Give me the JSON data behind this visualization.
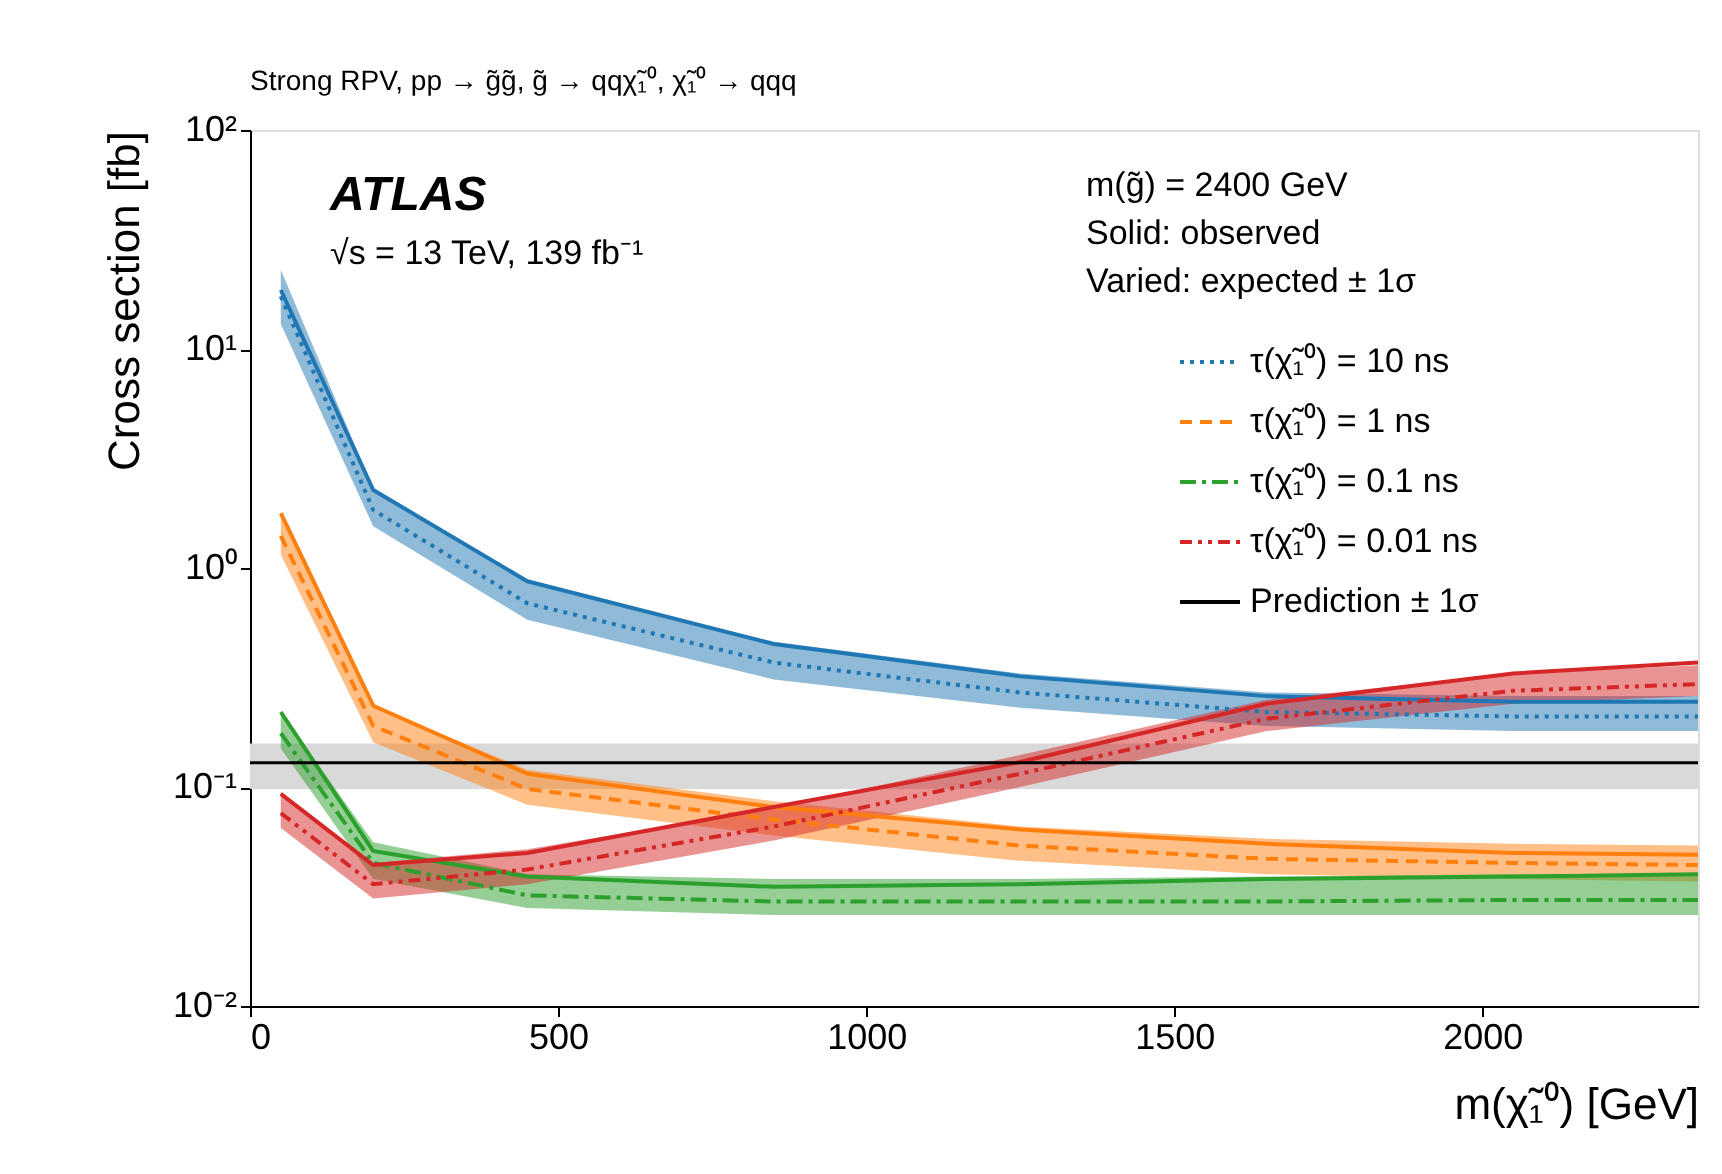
{
  "chart_data": {
    "type": "line",
    "title": "Strong RPV, pp → g̃g̃, g̃ → qqχ̃₁⁰, χ̃₁⁰ → qqq",
    "xlabel": "m(χ̃₁⁰) [GeV]",
    "ylabel": "Cross section [fb]",
    "annotations": [
      "ATLAS",
      "√s = 13 TeV, 139 fb⁻¹",
      "m(g̃) = 2400 GeV",
      "Solid: observed",
      "Varied: expected ± 1σ"
    ],
    "x": [
      50,
      200,
      450,
      850,
      1250,
      1650,
      2050,
      2350
    ],
    "series": [
      {
        "name": "τ(χ̃₁⁰) = 10 ns",
        "color": "#1f77b4",
        "line_style": "dotted",
        "values": [
          17.4,
          1.84,
          0.69,
          0.37,
          0.27,
          0.22,
          0.21,
          0.21
        ],
        "lower": [
          13,
          1.55,
          0.58,
          0.31,
          0.23,
          0.19,
          0.18,
          0.18
        ],
        "upper": [
          23,
          2.3,
          0.87,
          0.46,
          0.33,
          0.27,
          0.26,
          0.26
        ]
      },
      {
        "color": "#1f77b4",
        "line_style": "solid",
        "values": [
          18.6,
          2.27,
          0.87,
          0.45,
          0.32,
          0.26,
          0.245,
          0.245
        ]
      },
      {
        "name": "τ(χ̃₁⁰) = 1 ns",
        "color": "#ff7f0e",
        "line_style": "dashed",
        "values": [
          1.4,
          0.19,
          0.098,
          0.071,
          0.054,
          0.047,
          0.045,
          0.044
        ],
        "lower": [
          1.15,
          0.16,
          0.083,
          0.06,
          0.046,
          0.04,
          0.038,
          0.037
        ],
        "upper": [
          1.75,
          0.235,
          0.12,
          0.086,
          0.066,
          0.058,
          0.055,
          0.054
        ]
      },
      {
        "color": "#ff7f0e",
        "line_style": "solid",
        "values": [
          1.78,
          0.235,
          0.115,
          0.081,
          0.064,
          0.055,
          0.05,
          0.049
        ]
      },
      {
        "name": "τ(χ̃₁⁰) = 0.1 ns",
        "color": "#2ca02c",
        "line_style": "dashdot",
        "values": [
          0.176,
          0.045,
          0.032,
          0.03,
          0.03,
          0.03,
          0.0305,
          0.0305
        ],
        "lower": [
          0.15,
          0.038,
          0.028,
          0.026,
          0.026,
          0.026,
          0.026,
          0.026
        ],
        "upper": [
          0.22,
          0.056,
          0.04,
          0.038,
          0.038,
          0.039,
          0.04,
          0.04
        ]
      },
      {
        "color": "#2ca02c",
        "line_style": "solid",
        "values": [
          0.22,
          0.051,
          0.039,
          0.035,
          0.036,
          0.038,
          0.039,
          0.04
        ]
      },
      {
        "name": "τ(χ̃₁⁰) = 0.01 ns",
        "color": "#d62728",
        "line_style": "dashdotdot",
        "values": [
          0.076,
          0.036,
          0.042,
          0.066,
          0.115,
          0.205,
          0.275,
          0.295
        ],
        "lower": [
          0.065,
          0.031,
          0.036,
          0.057,
          0.1,
          0.18,
          0.24,
          0.26
        ],
        "upper": [
          0.095,
          0.045,
          0.052,
          0.08,
          0.14,
          0.25,
          0.33,
          0.36
        ]
      },
      {
        "color": "#d62728",
        "line_style": "solid",
        "values": [
          0.093,
          0.044,
          0.05,
          0.081,
          0.13,
          0.24,
          0.33,
          0.37
        ]
      }
    ],
    "ref_lines": [
      {
        "axis": "y",
        "value": 0.129,
        "label": "Prediction ± 1σ",
        "color": "#000000",
        "line_style": "solid"
      }
    ],
    "bands": [
      {
        "axis": "y",
        "from": 0.098,
        "to": 0.158,
        "color": "#d9d9d9"
      }
    ],
    "log": "y",
    "xlim": [
      0,
      2350
    ],
    "xticks": [
      0,
      500,
      1000,
      1500,
      2000
    ],
    "ylim": [
      0.01,
      100
    ],
    "yticks": [
      {
        "value": 0.01,
        "label": "10⁻²"
      },
      {
        "value": 0.1,
        "label": "10⁻¹"
      },
      {
        "value": 1,
        "label": "10⁰"
      },
      {
        "value": 10,
        "label": "10¹"
      },
      {
        "value": 100,
        "label": "10²"
      }
    ],
    "grid": false,
    "legend": "top right"
  }
}
